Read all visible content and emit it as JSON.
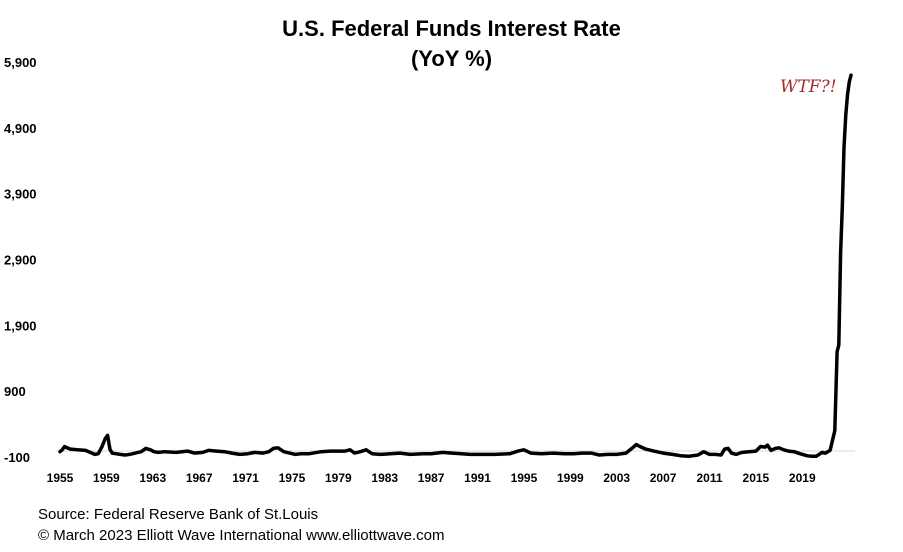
{
  "chart_data": {
    "type": "line",
    "title": "U.S. Federal Funds Interest Rate",
    "subtitle": "(YoY %)",
    "xlabel": "",
    "ylabel": "",
    "ylim": [
      -100,
      5900
    ],
    "xlim": [
      1955,
      2023.2
    ],
    "grid": false,
    "y_ticks": [
      "5,900",
      "4,900",
      "3,900",
      "2,900",
      "1,900",
      "900",
      "-100"
    ],
    "y_tick_values": [
      5900,
      4900,
      3900,
      2900,
      1900,
      900,
      -100
    ],
    "x_ticks": [
      "1955",
      "1959",
      "1963",
      "1967",
      "1971",
      "1975",
      "1979",
      "1983",
      "1987",
      "1991",
      "1995",
      "1999",
      "2003",
      "2007",
      "2011",
      "2015",
      "2019"
    ],
    "x_tick_values": [
      1955,
      1959,
      1963,
      1967,
      1971,
      1975,
      1979,
      1983,
      1987,
      1991,
      1995,
      1999,
      2003,
      2007,
      2011,
      2015,
      2019
    ],
    "annotation": "WTF?!",
    "series": [
      {
        "name": "",
        "color": "#000000",
        "x": [
          1955.0,
          1955.2,
          1955.4,
          1955.6,
          1955.9,
          1956.5,
          1957.2,
          1957.6,
          1958.0,
          1958.3,
          1958.6,
          1958.9,
          1959.1,
          1959.3,
          1959.5,
          1959.8,
          1960.2,
          1960.6,
          1961.0,
          1961.5,
          1962.0,
          1962.4,
          1962.8,
          1963.1,
          1963.5,
          1964.0,
          1965.0,
          1966.0,
          1966.6,
          1967.3,
          1967.8,
          1968.5,
          1969.2,
          1969.8,
          1970.5,
          1971.2,
          1971.8,
          1972.5,
          1973.0,
          1973.4,
          1973.8,
          1974.3,
          1974.8,
          1975.3,
          1975.8,
          1976.5,
          1977.5,
          1978.3,
          1979.0,
          1979.6,
          1980.0,
          1980.4,
          1980.9,
          1981.4,
          1981.9,
          1982.6,
          1983.5,
          1984.3,
          1985.2,
          1986.3,
          1987.0,
          1988.0,
          1988.8,
          1989.6,
          1990.4,
          1991.3,
          1992.5,
          1993.8,
          1994.5,
          1995.0,
          1995.6,
          1996.5,
          1997.5,
          1998.5,
          1999.3,
          2000.0,
          2000.8,
          2001.5,
          2002.2,
          2003.0,
          2003.8,
          2004.3,
          2004.7,
          2005.0,
          2005.5,
          2006.2,
          2007.0,
          2007.8,
          2008.5,
          2009.2,
          2010.0,
          2010.5,
          2011.0,
          2011.5,
          2012.0,
          2012.3,
          2012.6,
          2012.9,
          2013.3,
          2013.8,
          2014.4,
          2015.0,
          2015.4,
          2015.8,
          2016.0,
          2016.3,
          2016.7,
          2017.0,
          2017.4,
          2017.8,
          2018.3,
          2018.8,
          2019.4,
          2019.8,
          2020.2,
          2020.7,
          2021.0,
          2021.4,
          2021.8,
          2022.0,
          2022.15,
          2022.3,
          2022.45,
          2022.6,
          2022.75,
          2022.9,
          2023.05,
          2023.2
        ],
        "y": [
          -20,
          10,
          60,
          40,
          20,
          10,
          0,
          -30,
          -60,
          -50,
          50,
          180,
          230,
          20,
          -40,
          -50,
          -60,
          -70,
          -60,
          -40,
          -20,
          30,
          10,
          -20,
          -30,
          -20,
          -30,
          -10,
          -40,
          -30,
          0,
          -10,
          -20,
          -40,
          -60,
          -50,
          -30,
          -40,
          -20,
          30,
          40,
          -20,
          -40,
          -60,
          -50,
          -50,
          -20,
          -10,
          -10,
          -10,
          10,
          -40,
          -20,
          10,
          -50,
          -60,
          -50,
          -40,
          -60,
          -50,
          -50,
          -30,
          -40,
          -50,
          -60,
          -60,
          -60,
          -50,
          -10,
          10,
          -40,
          -50,
          -40,
          -50,
          -50,
          -40,
          -40,
          -70,
          -60,
          -60,
          -40,
          30,
          90,
          60,
          20,
          -10,
          -40,
          -60,
          -80,
          -90,
          -70,
          -20,
          -60,
          -60,
          -70,
          20,
          30,
          -40,
          -60,
          -30,
          -20,
          -10,
          60,
          50,
          80,
          0,
          30,
          40,
          10,
          -10,
          -20,
          -50,
          -80,
          -90,
          -90,
          -30,
          -40,
          0,
          300,
          1500,
          1600,
          3000,
          3700,
          4600,
          5100,
          5400,
          5600,
          5700
        ]
      }
    ],
    "footer": {
      "source": "Source: Federal Reserve Bank of St.Louis",
      "copyright": "© March 2023   Elliott  Wave International   www.elliottwave.com"
    }
  }
}
